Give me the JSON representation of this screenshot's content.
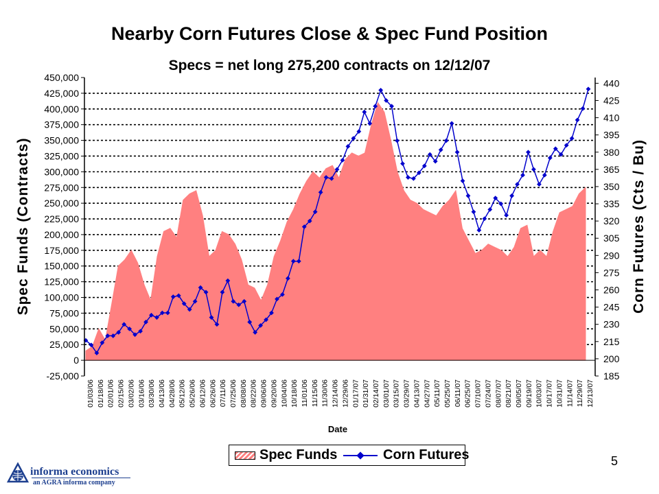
{
  "slide": {
    "page_number": "5",
    "logo": {
      "name": "informa economics",
      "tagline": "an AGRA informa company",
      "icon": "globe-icon"
    }
  },
  "chart_data": {
    "type": "area",
    "title": "Nearby Corn Futures Close & Spec Fund Position",
    "subtitle": "Specs = net long 275,200 contracts on 12/12/07",
    "xlabel": "Date",
    "ylabel_left": "Spec Funds (Contracts)",
    "ylabel_right": "Corn Futures (Cts / Bu)",
    "x_tick_labels": [
      "01/03/06",
      "01/18/06",
      "02/01/06",
      "02/15/06",
      "03/02/06",
      "03/16/06",
      "03/30/06",
      "04/13/06",
      "04/28/06",
      "05/12/06",
      "05/26/06",
      "06/12/06",
      "06/26/06",
      "07/11/06",
      "07/25/06",
      "08/08/06",
      "08/22/06",
      "09/06/06",
      "09/20/06",
      "10/04/06",
      "10/18/06",
      "11/01/06",
      "11/15/06",
      "11/30/06",
      "12/14/06",
      "12/29/06",
      "01/17/07",
      "01/31/07",
      "02/14/07",
      "03/01/07",
      "03/15/07",
      "03/29/07",
      "04/13/07",
      "04/27/07",
      "05/11/07",
      "05/25/07",
      "06/11/07",
      "06/25/07",
      "07/10/07",
      "07/24/07",
      "08/07/07",
      "08/21/07",
      "09/05/07",
      "09/19/07",
      "10/03/07",
      "10/17/07",
      "10/31/07",
      "11/14/07",
      "11/29/07",
      "12/13/07"
    ],
    "y_left": {
      "min": -25000,
      "max": 450000,
      "step": 25000,
      "tick_labels": [
        "-25,000",
        "0",
        "25,000",
        "50,000",
        "75,000",
        "100,000",
        "125,000",
        "150,000",
        "175,000",
        "200,000",
        "225,000",
        "250,000",
        "275,000",
        "300,000",
        "325,000",
        "350,000",
        "375,000",
        "400,000",
        "425,000",
        "450,000"
      ]
    },
    "y_right": {
      "min": 185,
      "max": 445,
      "step": 15,
      "tick_labels": [
        "185",
        "200",
        "215",
        "230",
        "245",
        "260",
        "275",
        "290",
        "305",
        "320",
        "335",
        "350",
        "365",
        "380",
        "395",
        "410",
        "425",
        "440"
      ]
    },
    "gridlines": "dashed horizontal",
    "legend_position": "bottom-center",
    "series": [
      {
        "name": "Spec Funds",
        "axis": "left",
        "style": "area",
        "color": "#ff8080",
        "values": [
          15000,
          22000,
          50000,
          32000,
          90000,
          150000,
          160000,
          175000,
          155000,
          120000,
          95000,
          165000,
          205000,
          210000,
          195000,
          255000,
          265000,
          270000,
          230000,
          165000,
          175000,
          205000,
          200000,
          185000,
          160000,
          120000,
          115000,
          95000,
          120000,
          165000,
          190000,
          220000,
          240000,
          265000,
          285000,
          300000,
          290000,
          305000,
          310000,
          290000,
          320000,
          330000,
          325000,
          330000,
          375000,
          410000,
          395000,
          350000,
          300000,
          270000,
          255000,
          250000,
          240000,
          235000,
          230000,
          245000,
          255000,
          270000,
          210000,
          190000,
          170000,
          175000,
          185000,
          180000,
          175000,
          165000,
          180000,
          210000,
          215000,
          165000,
          175000,
          165000,
          205000,
          235000,
          240000,
          245000,
          265000,
          275000
        ]
      },
      {
        "name": "Corn Futures",
        "axis": "right",
        "style": "line-markers",
        "color": "#0000cc",
        "values": [
          216,
          212,
          205,
          214,
          220,
          220,
          223,
          230,
          226,
          221,
          224,
          232,
          238,
          236,
          240,
          240,
          254,
          255,
          248,
          243,
          250,
          262,
          258,
          236,
          230,
          258,
          268,
          250,
          247,
          250,
          232,
          223,
          229,
          234,
          240,
          252,
          256,
          270,
          285,
          285,
          315,
          320,
          328,
          345,
          358,
          357,
          365,
          373,
          385,
          392,
          398,
          415,
          405,
          420,
          434,
          425,
          420,
          390,
          370,
          358,
          357,
          362,
          368,
          378,
          372,
          382,
          390,
          405,
          380,
          355,
          342,
          328,
          312,
          322,
          330,
          340,
          335,
          325,
          342,
          352,
          360,
          380,
          365,
          352,
          360,
          375,
          383,
          378,
          386,
          392,
          408,
          418,
          435
        ]
      }
    ]
  }
}
